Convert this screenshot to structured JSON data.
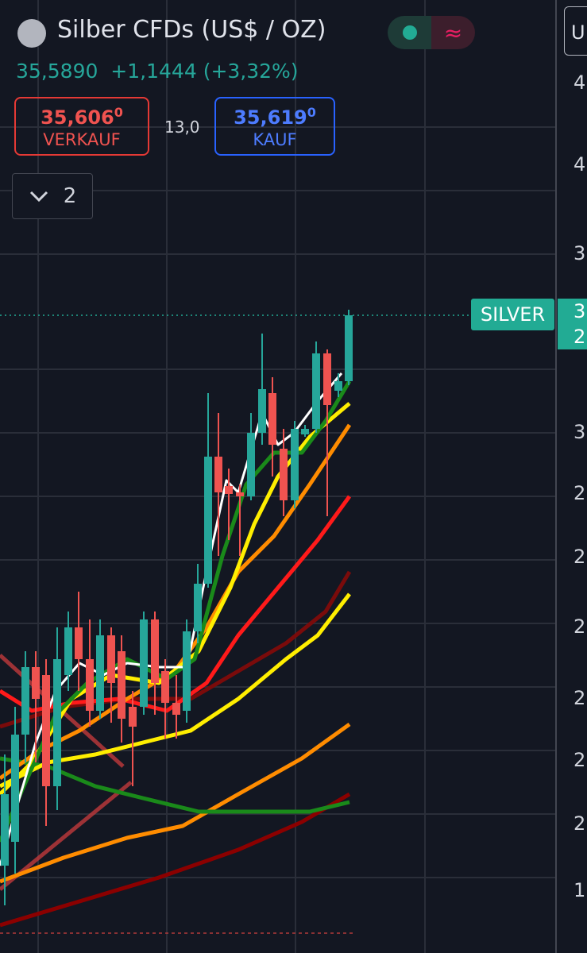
{
  "header": {
    "title": "Silber CFDs (US$ / OZ)",
    "price": "35,5890",
    "change": "+1,1444",
    "change_pct": "(+3,32%)"
  },
  "order_panel": {
    "sell_price": "35,606",
    "sell_sup": "0",
    "sell_label": "VERKAUF",
    "spread": "13,0",
    "buy_price": "35,619",
    "buy_sup": "0",
    "buy_label": "KAUF"
  },
  "indicators_toggle": {
    "count": "2"
  },
  "top_right_button": "U",
  "price_label": {
    "symbol": "SILVER",
    "axis_box": [
      "3",
      "2"
    ]
  },
  "axis": {
    "labels": [
      "4",
      "4",
      "3",
      "3",
      "2",
      "2",
      "2",
      "2",
      "2",
      "2",
      "1"
    ]
  }
}
